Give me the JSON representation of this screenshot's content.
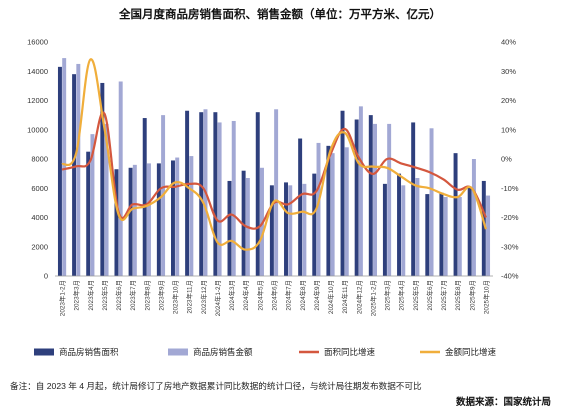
{
  "chart_data": {
    "type": "bar",
    "title": "全国月度商品房销售面积、销售金额（单位：万平方米、亿元）",
    "categories": [
      "2023年1-2月",
      "2023年3月",
      "2023年4月",
      "2023年5月",
      "2023年6月",
      "2023年7月",
      "2023年8月",
      "2023年9月",
      "2023年10月",
      "2023年11月",
      "2023年12月",
      "2024年1-2月",
      "2024年3月",
      "2024年4月",
      "2024年5月",
      "2024年6月",
      "2024年7月",
      "2024年8月",
      "2024年9月",
      "2024年10月",
      "2024年11月",
      "2024年12月",
      "2025年1-2月",
      "2025年3月",
      "2025年4月",
      "2025年5月",
      "2025年6月",
      "2025年7月",
      "2025年8月",
      "2025年9月",
      "2025年10月"
    ],
    "series": [
      {
        "name": "商品房销售面积",
        "axis": "left",
        "color": "#2e3f7c",
        "values": [
          14300,
          13800,
          8500,
          13200,
          7300,
          7400,
          10800,
          7700,
          7900,
          11300,
          11200,
          11200,
          6500,
          7200,
          11200,
          6200,
          6400,
          9400,
          7000,
          8900,
          11300,
          10700,
          11000,
          6300,
          7000,
          10500,
          5600,
          5700,
          8400,
          6100,
          6500
        ]
      },
      {
        "name": "商品房销售金额",
        "axis": "left",
        "color": "#a2a8d4",
        "values": [
          14900,
          14500,
          9700,
          10400,
          13300,
          7600,
          7700,
          11000,
          8100,
          8200,
          11400,
          10500,
          10600,
          6700,
          7400,
          11400,
          6200,
          6300,
          9100,
          8400,
          8800,
          11600,
          10400,
          10400,
          6200,
          6700,
          10100,
          5400,
          5400,
          8000,
          5500
        ]
      },
      {
        "name": "面积同比增速",
        "axis": "right",
        "color": "#d4573e",
        "values": [
          -3.6,
          -2.5,
          -0.6,
          15.5,
          -18.2,
          -15.5,
          -15.5,
          -10,
          -9.5,
          -8.5,
          -10,
          -21.0,
          -19.0,
          -23.0,
          -23.0,
          -15.0,
          -15.5,
          -12.0,
          -11.0,
          1.6,
          10.3,
          0.5,
          -5.1,
          0,
          -1.5,
          -2.9,
          -4.5,
          -7.0,
          -10.5,
          -10.0,
          -20.0
        ]
      },
      {
        "name": "金额同比增速",
        "axis": "right",
        "color": "#f0ae3b",
        "values": [
          -1.8,
          2.0,
          34.0,
          10.5,
          -19.0,
          -17.0,
          -16.0,
          -13.0,
          -8.0,
          -10.0,
          -15.0,
          -28.5,
          -28.0,
          -31.0,
          -28.0,
          -14.5,
          -18.5,
          -18.0,
          -17.0,
          3.0,
          9.0,
          -1.5,
          -2.6,
          -3.0,
          -6.0,
          -9.0,
          -10.0,
          -12.0,
          -13.0,
          -10.0,
          -24.0
        ]
      }
    ],
    "y_left": {
      "min": 0,
      "max": 16000,
      "ticks": [
        0,
        2000,
        4000,
        6000,
        8000,
        10000,
        12000,
        14000,
        16000
      ]
    },
    "y_right": {
      "min": -40,
      "max": 40,
      "ticks": [
        "-40%",
        "-30%",
        "-20%",
        "-10%",
        "0%",
        "10%",
        "20%",
        "30%",
        "40%"
      ]
    },
    "grid": false,
    "legend": "bottom"
  },
  "footer": {
    "note": "备注：自 2023 年 4 月起，统计局修订了房地产数据累计同比数据的统计口径，与统计局往期发布数据不可比",
    "source": "数据来源：国家统计局"
  }
}
